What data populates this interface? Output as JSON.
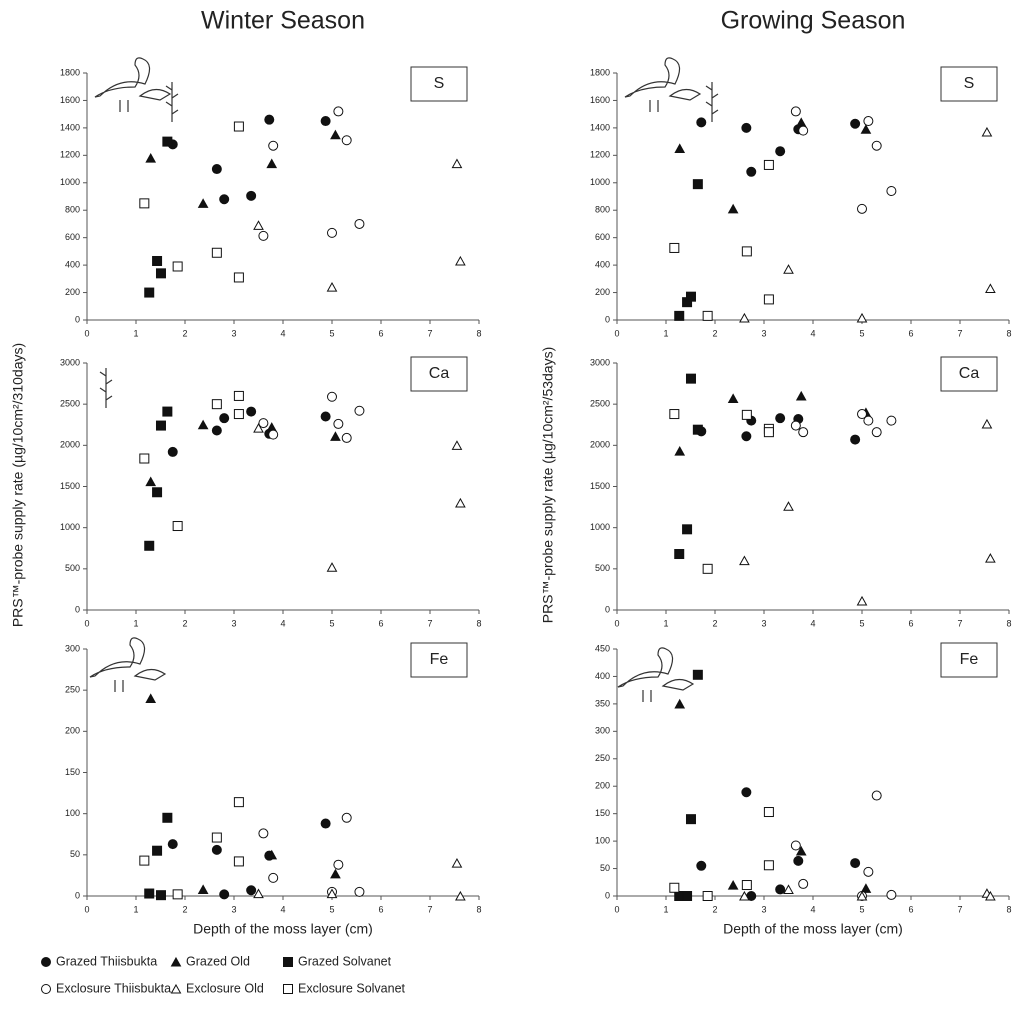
{
  "legend": [
    {
      "name": "Grazed Thiisbukta",
      "marker": "circle",
      "filled": true
    },
    {
      "name": "Grazed Old",
      "marker": "triangle",
      "filled": true
    },
    {
      "name": "Grazed Solvanet",
      "marker": "square",
      "filled": true
    },
    {
      "name": "Exclosure Thiisbukta",
      "marker": "circle",
      "filled": false
    },
    {
      "name": "Exclosure Old",
      "marker": "triangle",
      "filled": false
    },
    {
      "name": "Exclosure Solvanet",
      "marker": "square",
      "filled": false
    }
  ],
  "chart_data": [
    {
      "type": "scatter",
      "title": "Winter Season",
      "label": "S",
      "xlim": [
        0,
        8
      ],
      "xticks": [
        0,
        1,
        2,
        3,
        4,
        5,
        6,
        7,
        8
      ],
      "ylim": [
        0,
        1800
      ],
      "yticks": [
        0,
        200,
        400,
        600,
        800,
        1000,
        1200,
        1400,
        1600,
        1800
      ],
      "series": [
        {
          "x": [
            1.75,
            2.65,
            2.8,
            3.35,
            3.72,
            4.87
          ],
          "values": [
            1280,
            1100,
            880,
            905,
            1460,
            1450
          ]
        },
        {
          "x": [
            1.3,
            2.37,
            3.77,
            5.07
          ],
          "values": [
            1180,
            850,
            1140,
            1350
          ]
        },
        {
          "x": [
            1.27,
            1.43,
            1.51,
            1.64
          ],
          "values": [
            200,
            430,
            340,
            1300
          ]
        },
        {
          "x": [
            3.6,
            3.8,
            5.0,
            5.13,
            5.3,
            5.56
          ],
          "values": [
            613,
            1270,
            635,
            1520,
            1310,
            700
          ]
        },
        {
          "x": [
            3.5,
            5.0,
            7.55,
            7.62
          ],
          "values": [
            690,
            240,
            1140,
            430
          ]
        },
        {
          "x": [
            1.17,
            1.85,
            2.65,
            3.1,
            3.1
          ],
          "values": [
            850,
            390,
            490,
            1410,
            310
          ]
        }
      ]
    },
    {
      "type": "scatter",
      "title": "Growing Season",
      "label": "S",
      "xlim": [
        0,
        8
      ],
      "xticks": [
        0,
        1,
        2,
        3,
        4,
        5,
        6,
        7,
        8
      ],
      "ylim": [
        0,
        1800
      ],
      "yticks": [
        0,
        200,
        400,
        600,
        800,
        1000,
        1200,
        1400,
        1600,
        1800
      ],
      "series": [
        {
          "x": [
            1.72,
            2.64,
            2.74,
            3.33,
            3.7,
            4.86
          ],
          "values": [
            1440,
            1400,
            1080,
            1230,
            1390,
            1430
          ]
        },
        {
          "x": [
            1.28,
            2.37,
            3.76,
            5.08
          ],
          "values": [
            1250,
            810,
            1440,
            1390
          ]
        },
        {
          "x": [
            1.27,
            1.43,
            1.51,
            1.65
          ],
          "values": [
            30,
            130,
            170,
            990
          ]
        },
        {
          "x": [
            3.65,
            3.8,
            5.0,
            5.13,
            5.3,
            5.6
          ],
          "values": [
            1520,
            1380,
            810,
            1450,
            1270,
            940
          ]
        },
        {
          "x": [
            2.6,
            3.5,
            5.0,
            7.55,
            7.62
          ],
          "values": [
            15,
            370,
            15,
            1370,
            230
          ]
        },
        {
          "x": [
            1.17,
            1.85,
            2.65,
            3.1,
            3.1
          ],
          "values": [
            525,
            30,
            500,
            1130,
            150
          ]
        }
      ]
    },
    {
      "type": "scatter",
      "label": "Ca",
      "ylabel": "PRS™-probe supply rate (µg/10cm²/310days)",
      "xlim": [
        0,
        8
      ],
      "xticks": [
        0,
        1,
        2,
        3,
        4,
        5,
        6,
        7,
        8
      ],
      "ylim": [
        0,
        3000
      ],
      "yticks": [
        0,
        500,
        1000,
        1500,
        2000,
        2500,
        3000
      ],
      "series": [
        {
          "x": [
            1.75,
            2.65,
            2.8,
            3.35,
            3.72,
            4.87
          ],
          "values": [
            1920,
            2180,
            2330,
            2410,
            2140,
            2350
          ]
        },
        {
          "x": [
            1.3,
            2.37,
            3.77,
            5.07
          ],
          "values": [
            1560,
            2250,
            2220,
            2110
          ]
        },
        {
          "x": [
            1.27,
            1.43,
            1.51,
            1.64
          ],
          "values": [
            780,
            1430,
            2240,
            2410
          ]
        },
        {
          "x": [
            3.6,
            3.8,
            5.0,
            5.13,
            5.3,
            5.56
          ],
          "values": [
            2270,
            2130,
            2590,
            2260,
            2090,
            2420
          ]
        },
        {
          "x": [
            3.5,
            5.0,
            7.55,
            7.62
          ],
          "values": [
            2210,
            520,
            2000,
            1300
          ]
        },
        {
          "x": [
            1.17,
            1.85,
            2.65,
            3.1,
            3.1
          ],
          "values": [
            1840,
            1020,
            2500,
            2600,
            2380
          ]
        }
      ]
    },
    {
      "type": "scatter",
      "label": "Ca",
      "ylabel": "PRS™-probe supply rate (µg/10cm²/53days)",
      "xlim": [
        0,
        8
      ],
      "xticks": [
        0,
        1,
        2,
        3,
        4,
        5,
        6,
        7,
        8
      ],
      "ylim": [
        0,
        3000
      ],
      "yticks": [
        0,
        500,
        1000,
        1500,
        2000,
        2500,
        3000
      ],
      "series": [
        {
          "x": [
            1.72,
            2.64,
            2.74,
            3.33,
            3.7,
            4.86
          ],
          "values": [
            2170,
            2110,
            2300,
            2330,
            2320,
            2070
          ]
        },
        {
          "x": [
            1.28,
            2.37,
            3.76,
            5.08
          ],
          "values": [
            1930,
            2570,
            2600,
            2400
          ]
        },
        {
          "x": [
            1.27,
            1.43,
            1.51,
            1.65
          ],
          "values": [
            680,
            980,
            2810,
            2190
          ]
        },
        {
          "x": [
            3.65,
            3.8,
            5.0,
            5.13,
            5.3,
            5.6
          ],
          "values": [
            2240,
            2160,
            2380,
            2300,
            2160,
            2300
          ]
        },
        {
          "x": [
            2.6,
            3.5,
            5.0,
            7.55,
            7.62
          ],
          "values": [
            600,
            1260,
            110,
            2260,
            630
          ]
        },
        {
          "x": [
            1.17,
            1.85,
            2.65,
            3.1,
            3.1
          ],
          "values": [
            2380,
            500,
            2370,
            2200,
            2160
          ]
        }
      ]
    },
    {
      "type": "scatter",
      "label": "Fe",
      "xlabel": "Depth of the moss layer (cm)",
      "xlim": [
        0,
        8
      ],
      "xticks": [
        0,
        1,
        2,
        3,
        4,
        5,
        6,
        7,
        8
      ],
      "ylim": [
        0,
        300
      ],
      "yticks": [
        0,
        50,
        100,
        150,
        200,
        250,
        300
      ],
      "series": [
        {
          "x": [
            1.75,
            2.65,
            2.8,
            3.35,
            3.72,
            4.87
          ],
          "values": [
            63,
            56,
            2,
            7,
            49,
            88
          ]
        },
        {
          "x": [
            1.3,
            2.37,
            3.77,
            5.07
          ],
          "values": [
            240,
            8,
            50,
            27
          ]
        },
        {
          "x": [
            1.27,
            1.43,
            1.51,
            1.64
          ],
          "values": [
            3,
            55,
            1,
            95
          ]
        },
        {
          "x": [
            3.6,
            3.8,
            5.0,
            5.13,
            5.3,
            5.56
          ],
          "values": [
            76,
            22,
            5,
            38,
            95,
            5
          ]
        },
        {
          "x": [
            3.5,
            5.0,
            7.55,
            7.62
          ],
          "values": [
            3,
            3,
            40,
            0
          ]
        },
        {
          "x": [
            1.17,
            1.85,
            2.65,
            3.1,
            3.1
          ],
          "values": [
            43,
            2,
            71,
            114,
            42
          ]
        }
      ]
    },
    {
      "type": "scatter",
      "label": "Fe",
      "xlabel": "Depth of the moss layer (cm)",
      "xlim": [
        0,
        8
      ],
      "xticks": [
        0,
        1,
        2,
        3,
        4,
        5,
        6,
        7,
        8
      ],
      "ylim": [
        0,
        450
      ],
      "yticks": [
        0,
        50,
        100,
        150,
        200,
        250,
        300,
        350,
        400,
        450
      ],
      "series": [
        {
          "x": [
            1.72,
            2.64,
            2.74,
            3.33,
            3.7,
            4.86
          ],
          "values": [
            55,
            189,
            0,
            12,
            64,
            60
          ]
        },
        {
          "x": [
            1.28,
            2.37,
            3.76,
            5.08
          ],
          "values": [
            350,
            20,
            82,
            14
          ]
        },
        {
          "x": [
            1.27,
            1.43,
            1.51,
            1.65
          ],
          "values": [
            0,
            0,
            140,
            403
          ]
        },
        {
          "x": [
            3.65,
            3.8,
            5.0,
            5.13,
            5.3,
            5.6
          ],
          "values": [
            92,
            22,
            0,
            44,
            183,
            2
          ]
        },
        {
          "x": [
            2.6,
            3.5,
            5.0,
            7.55,
            7.62
          ],
          "values": [
            0,
            12,
            0,
            5,
            0
          ]
        },
        {
          "x": [
            1.17,
            1.85,
            2.65,
            3.1,
            3.1
          ],
          "values": [
            15,
            0,
            20,
            153,
            56
          ]
        }
      ]
    }
  ]
}
